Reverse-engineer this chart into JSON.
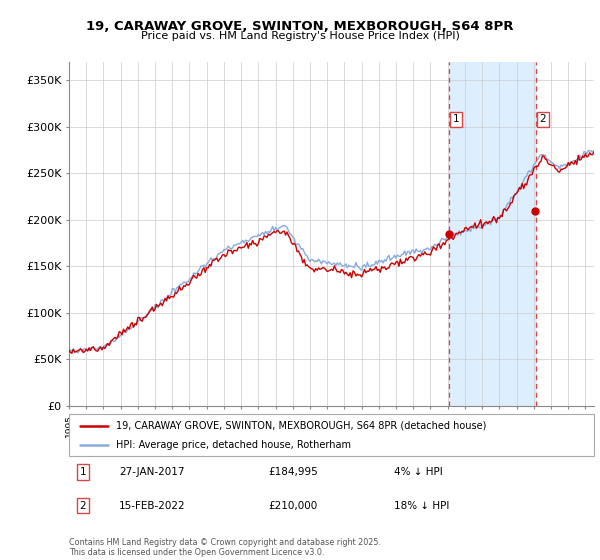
{
  "title": "19, CARAWAY GROVE, SWINTON, MEXBOROUGH, S64 8PR",
  "subtitle": "Price paid vs. HM Land Registry's House Price Index (HPI)",
  "legend_line1": "19, CARAWAY GROVE, SWINTON, MEXBOROUGH, S64 8PR (detached house)",
  "legend_line2": "HPI: Average price, detached house, Rotherham",
  "footnote": "Contains HM Land Registry data © Crown copyright and database right 2025.\nThis data is licensed under the Open Government Licence v3.0.",
  "sale1_label": "1",
  "sale1_date": "27-JAN-2017",
  "sale1_price": "£184,995",
  "sale1_hpi": "4% ↓ HPI",
  "sale1_year": 2017.08,
  "sale1_value": 184995,
  "sale2_label": "2",
  "sale2_date": "15-FEB-2022",
  "sale2_price": "£210,000",
  "sale2_hpi": "18% ↓ HPI",
  "sale2_year": 2022.12,
  "sale2_value": 210000,
  "price_color": "#cc0000",
  "hpi_color": "#88aadd",
  "shade_color": "#ddeeff",
  "vline_color": "#dd4444",
  "ylim_min": 0,
  "ylim_max": 370000,
  "yticks": [
    0,
    50000,
    100000,
    150000,
    200000,
    250000,
    300000,
    350000
  ],
  "ytick_labels": [
    "£0",
    "£50K",
    "£100K",
    "£150K",
    "£200K",
    "£250K",
    "£300K",
    "£350K"
  ],
  "xlim_min": 1995,
  "xlim_max": 2025.5,
  "background_color": "#ffffff",
  "grid_color": "#cccccc"
}
